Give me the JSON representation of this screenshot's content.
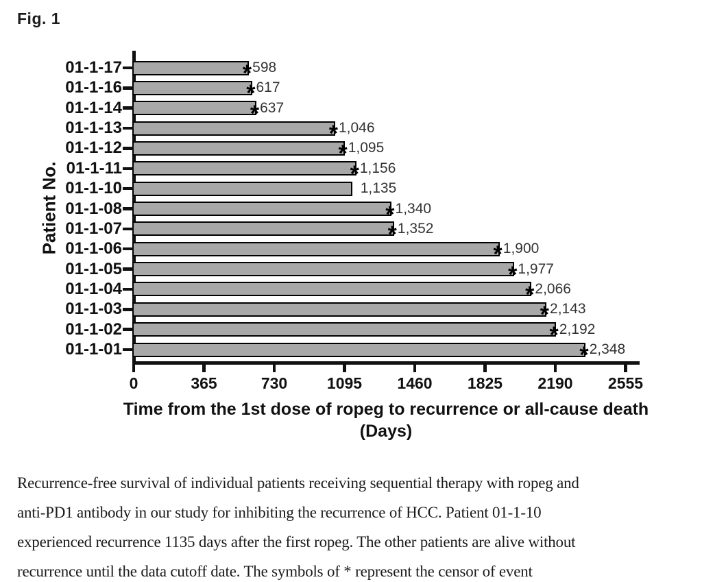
{
  "figure_label": "Fig. 1",
  "chart_data": {
    "type": "bar",
    "orientation": "horizontal",
    "ylabel": "Patient No.",
    "xlabel_line1": "Time from the 1st dose of ropeg to recurrence or all-cause death",
    "xlabel_line2": "(Days)",
    "categories": [
      "01-1-17",
      "01-1-16",
      "01-1-14",
      "01-1-13",
      "01-1-12",
      "01-1-11",
      "01-1-10",
      "01-1-08",
      "01-1-07",
      "01-1-06",
      "01-1-05",
      "01-1-04",
      "01-1-03",
      "01-1-02",
      "01-1-01"
    ],
    "values": [
      598,
      617,
      637,
      1046,
      1095,
      1156,
      1135,
      1340,
      1352,
      1900,
      1977,
      2066,
      2143,
      2192,
      2348
    ],
    "value_labels": [
      "598",
      "617",
      "637",
      "1,046",
      "1,095",
      "1,156",
      "1,135",
      "1,340",
      "1,352",
      "1,900",
      "1,977",
      "2,066",
      "2,143",
      "2,192",
      "2,348"
    ],
    "censored": [
      true,
      true,
      true,
      true,
      true,
      true,
      false,
      true,
      true,
      true,
      true,
      true,
      true,
      true,
      true
    ],
    "censor_symbol": "*",
    "x_ticks": [
      0,
      365,
      730,
      1095,
      1460,
      1825,
      2190,
      2555
    ],
    "xlim": [
      0,
      2555
    ],
    "legend": "none",
    "grid": false,
    "bar_fill": "#a8a8a8",
    "bar_border": "#000000"
  },
  "caption_lines": [
    "Recurrence-free survival of individual patients receiving sequential therapy with ropeg and",
    "anti-PD1 antibody in our study for inhibiting the recurrence of HCC. Patient 01-1-10",
    "experienced recurrence 1135 days after the first ropeg. The other patients are alive without",
    "recurrence until the data cutoff date. The symbols of * represent the censor of event"
  ]
}
